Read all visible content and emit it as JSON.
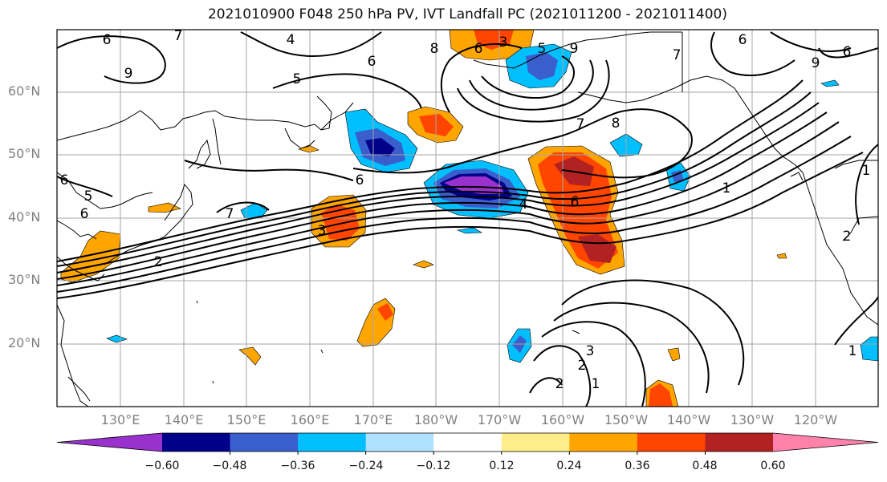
{
  "title": "2021010900 F048 250 hPa PV, IVT Landfall PC (2021011200 - 2021011400)",
  "lat_labels": [
    "60°N",
    "50°N",
    "40°N",
    "30°N",
    "20°N"
  ],
  "lon_labels": [
    "130°E",
    "140°E",
    "150°E",
    "160°E",
    "170°E",
    "180°W",
    "170°W",
    "160°W",
    "150°W",
    "140°W",
    "130°W",
    "120°W"
  ],
  "colorbar": {
    "colors": [
      "#9932CC",
      "#00008B",
      "#3A5FCD",
      "#00BFFF",
      "#B0E2FF",
      "#FFFFFF",
      "#FFEC8B",
      "#FFA500",
      "#FF4500",
      "#B22222",
      "#FF82AB"
    ],
    "ticks": [
      "−0.60",
      "−0.48",
      "−0.36",
      "−0.24",
      "−0.12",
      "0.12",
      "0.24",
      "0.36",
      "0.48",
      "0.60"
    ]
  },
  "contour_labels": [
    "6",
    "7",
    "4",
    "9",
    "5",
    "6",
    "8",
    "3",
    "6",
    "5",
    "9",
    "7",
    "8",
    "6",
    "7",
    "9",
    "6",
    "5",
    "6",
    "7",
    "6",
    "4",
    "3",
    "2",
    "6",
    "6",
    "3",
    "2",
    "2",
    "1",
    "1",
    "1",
    "2",
    "1"
  ]
}
